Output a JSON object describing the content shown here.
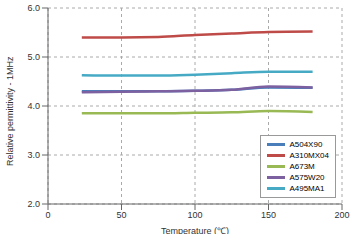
{
  "chart_data": {
    "type": "line",
    "x_label": "Temperature (℃)",
    "y_label": "Relative permittivity - 1MHz",
    "x": [
      23,
      50,
      75,
      100,
      125,
      150,
      180
    ],
    "series": [
      {
        "name": "A504X90",
        "color": "#4a7ebb",
        "values": [
          4.3,
          4.3,
          4.3,
          4.31,
          4.33,
          4.38,
          4.37
        ]
      },
      {
        "name": "A310MX04",
        "color": "#be4b48",
        "values": [
          5.4,
          5.4,
          5.41,
          5.45,
          5.48,
          5.51,
          5.52
        ]
      },
      {
        "name": "A673M",
        "color": "#98b954",
        "values": [
          3.85,
          3.85,
          3.85,
          3.86,
          3.87,
          3.9,
          3.88
        ]
      },
      {
        "name": "A575W20",
        "color": "#7d60a0",
        "values": [
          4.28,
          4.29,
          4.3,
          4.31,
          4.33,
          4.4,
          4.38
        ]
      },
      {
        "name": "A495MA1",
        "color": "#46aac5",
        "values": [
          4.63,
          4.62,
          4.62,
          4.64,
          4.67,
          4.7,
          4.7
        ]
      }
    ],
    "xlim": [
      0,
      200
    ],
    "xticks": [
      0,
      50,
      100,
      150,
      200
    ],
    "ylim": [
      2,
      6
    ],
    "yticks": [
      {
        "value": 2,
        "label": "2.0"
      },
      {
        "value": 3,
        "label": "3.0"
      },
      {
        "value": 4,
        "label": "4.0"
      },
      {
        "value": 5,
        "label": "5.0"
      },
      {
        "value": 6,
        "label": "6.0"
      }
    ],
    "grid": true,
    "legend": "lower right"
  }
}
